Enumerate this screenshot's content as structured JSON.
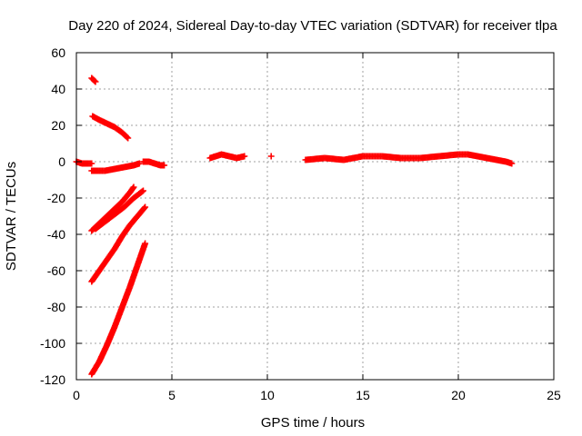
{
  "chart_data": {
    "type": "scatter",
    "title": "Day 220 of 2024, Sidereal Day-to-day VTEC variation (SDTVAR) for receiver tlpa",
    "xlabel": "GPS time / hours",
    "ylabel": "SDTVAR / TECUs",
    "xlim": [
      0,
      25
    ],
    "ylim": [
      -120,
      60
    ],
    "xticks": [
      0,
      5,
      10,
      15,
      20,
      25
    ],
    "yticks": [
      -120,
      -100,
      -80,
      -60,
      -40,
      -20,
      0,
      20,
      40,
      60
    ],
    "grid": true,
    "marker": "plus",
    "series_color": "#ff0000",
    "segments": [
      {
        "name": "arc-near-zero-left",
        "x": [
          0.0,
          0.3,
          0.6,
          0.8
        ],
        "y": [
          0,
          -1,
          -1,
          -1
        ]
      },
      {
        "name": "arc-45",
        "x": [
          0.8,
          1.0
        ],
        "y": [
          46,
          44
        ]
      },
      {
        "name": "arc-25-descending",
        "x": [
          0.85,
          1.2,
          1.6,
          2.0,
          2.4,
          2.7
        ],
        "y": [
          25,
          23,
          21,
          19,
          16,
          13
        ]
      },
      {
        "name": "arc-near-zero-mid",
        "x": [
          0.8,
          1.5,
          2.0,
          2.5,
          3.0,
          3.3
        ],
        "y": [
          -5,
          -5,
          -4,
          -3,
          -2,
          -1
        ]
      },
      {
        "name": "arc-near-zero-right",
        "x": [
          3.5,
          3.8,
          4.1,
          4.4,
          4.6
        ],
        "y": [
          0,
          0,
          -1,
          -2,
          -2
        ]
      },
      {
        "name": "arc-minus38-upper",
        "x": [
          0.8,
          1.2,
          1.6,
          2.0,
          2.4,
          2.8,
          3.0
        ],
        "y": [
          -38,
          -34,
          -30,
          -26,
          -22,
          -17,
          -14
        ]
      },
      {
        "name": "arc-minus38-lower",
        "x": [
          1.0,
          1.5,
          2.0,
          2.5,
          3.0,
          3.5
        ],
        "y": [
          -37,
          -33,
          -29,
          -25,
          -20,
          -16
        ]
      },
      {
        "name": "arc-minus65",
        "x": [
          0.8,
          1.2,
          1.6,
          2.0,
          2.4,
          2.8,
          3.2,
          3.6
        ],
        "y": [
          -66,
          -60,
          -54,
          -48,
          -41,
          -35,
          -30,
          -25
        ]
      },
      {
        "name": "arc-minus118",
        "x": [
          0.8,
          1.2,
          1.6,
          2.0,
          2.4,
          2.8,
          3.2,
          3.6
        ],
        "y": [
          -117,
          -110,
          -101,
          -91,
          -80,
          -69,
          -57,
          -45
        ]
      },
      {
        "name": "arc-7-to-9h",
        "x": [
          7.0,
          7.3,
          7.6,
          8.0,
          8.4,
          8.8
        ],
        "y": [
          2,
          3,
          4,
          3,
          2,
          3
        ]
      },
      {
        "name": "point-10h",
        "x": [
          10.2
        ],
        "y": [
          3
        ]
      },
      {
        "name": "arc-12-to-23h",
        "x": [
          12.0,
          13.0,
          14.0,
          15.0,
          16.0,
          17.0,
          18.0,
          19.0,
          20.0,
          20.5,
          21.0,
          21.5,
          22.0,
          22.5,
          22.8
        ],
        "y": [
          1,
          2,
          1,
          3,
          3,
          2,
          2,
          3,
          4,
          4,
          3,
          2,
          1,
          0,
          -1
        ]
      }
    ]
  }
}
